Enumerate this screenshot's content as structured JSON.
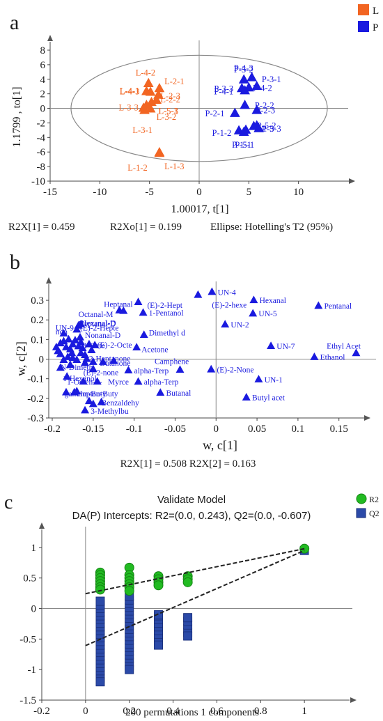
{
  "chart_data": [
    {
      "panel": "a",
      "type": "scatter",
      "xlabel": "1.00017, t[1]",
      "ylabel": "1.1799 , to[1]",
      "xlim": [
        -15,
        15
      ],
      "ylim": [
        -10,
        8
      ],
      "xticks": [
        -15,
        -10,
        -5,
        0,
        5,
        10
      ],
      "yticks": [
        -10,
        -8,
        -6,
        -4,
        -2,
        0,
        2,
        4,
        6,
        8
      ],
      "stats": [
        "R2X[1] = 0.459",
        "R2Xo[1] = 0.199",
        "Ellipse: Hotelling's T2 (95%)"
      ],
      "ellipse": {
        "rx": 12.9,
        "ry": 7.3
      },
      "series": [
        {
          "name": "L",
          "color": "#f26522",
          "points": [
            {
              "label": "L-4-2",
              "x": -5.1,
              "y": 3.4,
              "lx": -6.4,
              "ly": 4.9
            },
            {
              "label": "L-2-1",
              "x": -4.0,
              "y": 2.7,
              "lx": -3.5,
              "ly": 3.7
            },
            {
              "label": "L-4-3",
              "x": -5.3,
              "y": 2.3,
              "lx": -8.0,
              "ly": 2.3
            },
            {
              "label": "L-4-1",
              "x": -4.9,
              "y": 2.2,
              "lx": -8.0,
              "ly": 2.4
            },
            {
              "label": "L-2-3",
              "x": -4.1,
              "y": 1.8,
              "lx": -3.9,
              "ly": 1.7
            },
            {
              "label": "L-2-2",
              "x": -4.3,
              "y": 1.1,
              "lx": -3.9,
              "ly": 1.2
            },
            {
              "label": "L-3-3",
              "x": -4.8,
              "y": 0.8,
              "lx": -8.1,
              "ly": 0.1
            },
            {
              "label": "L-5-1",
              "x": -5.3,
              "y": 0.4,
              "lx": -4.1,
              "ly": -0.4
            },
            {
              "label": "L-5-3",
              "x": -4.9,
              "y": -0.1,
              "lx": -4.1,
              "ly": -0.4
            },
            {
              "label": "L-3-2",
              "x": -5.5,
              "y": -0.3,
              "lx": -4.3,
              "ly": -1.2
            },
            {
              "label": "L-3-1",
              "x": -5.6,
              "y": 0.0,
              "lx": -6.7,
              "ly": -3.0
            },
            {
              "label": "L-1-2",
              "x": -4.0,
              "y": -6.1,
              "lx": -7.2,
              "ly": -8.2
            },
            {
              "label": "L-1-3",
              "x": -4.0,
              "y": -6.2,
              "lx": -3.5,
              "ly": -8.0
            }
          ]
        },
        {
          "name": "P",
          "color": "#1a1adf",
          "points": [
            {
              "label": "P-4-3",
              "x": 5.3,
              "y": 4.2,
              "lx": 3.5,
              "ly": 5.5
            },
            {
              "label": "P-3-2",
              "x": 4.5,
              "y": 3.9,
              "lx": 3.5,
              "ly": 5.3
            },
            {
              "label": "P-3-1",
              "x": 5.8,
              "y": 3.0,
              "lx": 6.3,
              "ly": 4.0
            },
            {
              "label": "P-3-3",
              "x": 4.3,
              "y": 2.7,
              "lx": 1.5,
              "ly": 2.7
            },
            {
              "label": "P-4-1",
              "x": 4.6,
              "y": 2.4,
              "lx": 1.5,
              "ly": 2.3
            },
            {
              "label": "P-4-2",
              "x": 5.0,
              "y": 2.8,
              "lx": 5.4,
              "ly": 2.8
            },
            {
              "label": "P-2-2",
              "x": 4.6,
              "y": 0.4,
              "lx": 5.6,
              "ly": 0.4
            },
            {
              "label": "P-2-3",
              "x": 5.8,
              "y": -0.3,
              "lx": 5.7,
              "ly": -0.3
            },
            {
              "label": "P-2-1",
              "x": 3.6,
              "y": -0.7,
              "lx": 0.6,
              "ly": -0.7
            },
            {
              "label": "P-5-2",
              "x": 5.8,
              "y": -2.4,
              "lx": 5.8,
              "ly": -2.4
            },
            {
              "label": "P-5-3",
              "x": 6.0,
              "y": -2.8,
              "lx": 6.3,
              "ly": -2.8
            },
            {
              "label": "P-1-3",
              "x": 5.5,
              "y": -2.5,
              "lx": 5.6,
              "ly": -2.8
            },
            {
              "label": "P-1-2",
              "x": 4.0,
              "y": -3.1,
              "lx": 1.3,
              "ly": -3.4
            },
            {
              "label": "P-1-1",
              "x": 4.5,
              "y": -3.3,
              "lx": 3.3,
              "ly": -5.0
            },
            {
              "label": "P-5-1",
              "x": 4.7,
              "y": -3.0,
              "lx": 3.6,
              "ly": -5.0
            }
          ]
        }
      ],
      "legend": [
        {
          "name": "L",
          "color": "#f26522"
        },
        {
          "name": "P",
          "color": "#1a1adf"
        }
      ]
    },
    {
      "panel": "b",
      "type": "scatter",
      "xlabel": "w, c[1]",
      "ylabel": "w, c[2]",
      "xlim": [
        -0.2,
        0.18
      ],
      "ylim": [
        -0.3,
        0.35
      ],
      "xticks": [
        -0.2,
        -0.15,
        -0.1,
        -0.05,
        0,
        0.05,
        0.1,
        0.15
      ],
      "yticks": [
        -0.3,
        -0.2,
        -0.1,
        0,
        0.1,
        0.2,
        0.3
      ],
      "stats": [
        "R2X[1] = 0.508 R2X[2] = 0.163"
      ],
      "color": "#1a1adf",
      "points": [
        {
          "label": "UN-4",
          "x": -0.005,
          "y": 0.342
        },
        {
          "label": "Hexanal",
          "x": 0.046,
          "y": 0.3
        },
        {
          "label": "(E)-2-hexe",
          "x": -0.022,
          "y": 0.327,
          "lx": -0.005,
          "ly": 0.278
        },
        {
          "label": "Pentanal",
          "x": 0.125,
          "y": 0.271
        },
        {
          "label": "UN-5",
          "x": 0.045,
          "y": 0.232
        },
        {
          "label": "UN-2",
          "x": 0.011,
          "y": 0.176
        },
        {
          "label": "Heptanal",
          "x": -0.095,
          "y": 0.29,
          "lx": -0.137,
          "ly": 0.281
        },
        {
          "label": "(E)-2-Hept",
          "x": -0.113,
          "y": 0.245,
          "lx": -0.084,
          "ly": 0.276
        },
        {
          "label": "1-Pentanol",
          "x": -0.089,
          "y": 0.236
        },
        {
          "label": "Octanal-M",
          "x": -0.118,
          "y": 0.248,
          "lx": -0.168,
          "ly": 0.23
        },
        {
          "label": "Dimethyl d",
          "x": -0.088,
          "y": 0.123,
          "lx": -0.082,
          "ly": 0.135
        },
        {
          "label": "Acetone",
          "x": -0.097,
          "y": 0.059,
          "lx": -0.091,
          "ly": 0.049
        },
        {
          "label": "UN-7",
          "x": 0.067,
          "y": 0.066
        },
        {
          "label": "Ethyl Acet",
          "x": 0.171,
          "y": 0.03,
          "lx": 0.135,
          "ly": 0.068
        },
        {
          "label": "Ethanol",
          "x": 0.12,
          "y": 0.01
        },
        {
          "label": "Camphene",
          "x": -0.044,
          "y": -0.055,
          "lx": -0.075,
          "ly": -0.01
        },
        {
          "label": "(E)-2-None",
          "x": -0.006,
          "y": -0.053
        },
        {
          "label": "UN-1",
          "x": 0.052,
          "y": -0.104
        },
        {
          "label": "Butyl acet",
          "x": 0.037,
          "y": -0.196
        },
        {
          "label": "alpha-Terp",
          "x": -0.107,
          "y": -0.058
        },
        {
          "label": "alpha-Terp",
          "x": -0.095,
          "y": -0.116
        },
        {
          "label": "Butanal",
          "x": -0.068,
          "y": -0.172
        },
        {
          "label": "Hexanal-D",
          "x": -0.165,
          "y": 0.177,
          "lx": -0.165,
          "ly": 0.185
        },
        {
          "label": "Nonanal-D",
          "x": -0.166,
          "y": 0.11,
          "lx": -0.16,
          "ly": 0.122
        },
        {
          "label": "(E)-2-Hepte",
          "x": -0.17,
          "y": 0.15,
          "lx": -0.166,
          "ly": 0.16
        },
        {
          "label": "UN-9",
          "x": -0.186,
          "y": 0.13,
          "lx": -0.196,
          "ly": 0.16
        },
        {
          "label": "Heptanal-D",
          "x": -0.168,
          "y": 0.17,
          "lx": -0.168,
          "ly": 0.182
        },
        {
          "label": "non",
          "x": -0.19,
          "y": 0.08,
          "lx": -0.196,
          "ly": 0.14
        },
        {
          "label": "(E)-2-Octe",
          "x": -0.155,
          "y": 0.075,
          "lx": -0.145,
          "ly": 0.073
        },
        {
          "label": "1-Octe",
          "x": -0.175,
          "y": 0.075,
          "lx": -0.162,
          "ly": 0.07
        },
        {
          "label": "2-Heptanone",
          "x": -0.17,
          "y": -0.005,
          "lx": -0.155,
          "ly": 0.003
        },
        {
          "label": "Butanone",
          "x": -0.15,
          "y": -0.015,
          "lx": -0.142,
          "ly": -0.02
        },
        {
          "label": "N-Dimeth",
          "x": -0.178,
          "y": -0.03,
          "lx": -0.19,
          "ly": -0.04
        },
        {
          "label": "(E)-2-none",
          "x": -0.15,
          "y": -0.052,
          "lx": -0.162,
          "ly": -0.067
        },
        {
          "label": "1-Hexanol",
          "x": -0.182,
          "y": -0.09,
          "lx": -0.187,
          "ly": -0.098
        },
        {
          "label": "1-Octen-3-",
          "x": -0.162,
          "y": -0.115,
          "lx": -0.182,
          "ly": -0.115
        },
        {
          "label": "Myrce",
          "x": -0.145,
          "y": -0.115,
          "lx": -0.132,
          "ly": -0.115
        },
        {
          "label": "gamma-Buty",
          "x": -0.183,
          "y": -0.17,
          "lx": -0.185,
          "ly": -0.175
        },
        {
          "label": "Heptan-Buty",
          "x": -0.17,
          "y": -0.165,
          "lx": -0.17,
          "ly": -0.175
        },
        {
          "label": "Benzaldehy",
          "x": -0.14,
          "y": -0.22,
          "lx": -0.14,
          "ly": -0.222
        },
        {
          "label": "3-Methylbu",
          "x": -0.16,
          "y": -0.262,
          "lx": -0.153,
          "ly": -0.265
        }
      ],
      "extra_points": [
        {
          "x": -0.195,
          "y": 0.06
        },
        {
          "x": -0.193,
          "y": 0.04
        },
        {
          "x": -0.19,
          "y": 0.025
        },
        {
          "x": -0.186,
          "y": 0.09
        },
        {
          "x": -0.183,
          "y": 0.06
        },
        {
          "x": -0.18,
          "y": 0.1
        },
        {
          "x": -0.178,
          "y": 0.05
        },
        {
          "x": -0.176,
          "y": 0.03
        },
        {
          "x": -0.172,
          "y": 0.095
        },
        {
          "x": -0.168,
          "y": 0.065
        },
        {
          "x": -0.165,
          "y": 0.085
        },
        {
          "x": -0.163,
          "y": 0.055
        },
        {
          "x": -0.16,
          "y": 0.02
        },
        {
          "x": -0.158,
          "y": 0.0
        },
        {
          "x": -0.186,
          "y": -0.005
        },
        {
          "x": -0.181,
          "y": 0.01
        },
        {
          "x": -0.175,
          "y": 0.005
        },
        {
          "x": -0.165,
          "y": 0.03
        },
        {
          "x": -0.152,
          "y": 0.045
        },
        {
          "x": -0.148,
          "y": 0.07
        },
        {
          "x": -0.138,
          "y": -0.015
        },
        {
          "x": -0.125,
          "y": -0.01
        },
        {
          "x": -0.16,
          "y": -0.02
        },
        {
          "x": -0.19,
          "y": -0.045
        },
        {
          "x": -0.173,
          "y": -0.17
        },
        {
          "x": -0.155,
          "y": -0.215
        },
        {
          "x": -0.15,
          "y": -0.23
        }
      ]
    },
    {
      "panel": "c",
      "type": "scatter",
      "title": "Validate Model",
      "subtitle": "DA(P) Intercepts: R2=(0.0, 0.243), Q2=(0.0, -0.607)",
      "xlabel": "200 permutations 1 components",
      "xlim": [
        -0.2,
        1.2
      ],
      "ylim": [
        -1.5,
        1.25
      ],
      "xticks": [
        -0.2,
        0,
        0.2,
        0.4,
        0.6,
        0.8,
        1
      ],
      "yticks": [
        -1.5,
        -1,
        -0.5,
        0,
        0.5,
        1
      ],
      "legend": [
        {
          "name": "R2",
          "color": "#22bb22",
          "marker": "circle"
        },
        {
          "name": "Q2",
          "color": "#2b4aa8",
          "marker": "square"
        }
      ],
      "series": [
        {
          "name": "R2",
          "color": "#22bb22",
          "points": [
            {
              "x": 0.067,
              "y": 0.59
            },
            {
              "x": 0.067,
              "y": 0.55
            },
            {
              "x": 0.067,
              "y": 0.5
            },
            {
              "x": 0.067,
              "y": 0.45
            },
            {
              "x": 0.067,
              "y": 0.4
            },
            {
              "x": 0.067,
              "y": 0.35
            },
            {
              "x": 0.067,
              "y": 0.31
            },
            {
              "x": 0.2,
              "y": 0.67
            },
            {
              "x": 0.2,
              "y": 0.55
            },
            {
              "x": 0.2,
              "y": 0.5
            },
            {
              "x": 0.2,
              "y": 0.45
            },
            {
              "x": 0.2,
              "y": 0.4
            },
            {
              "x": 0.2,
              "y": 0.35
            },
            {
              "x": 0.2,
              "y": 0.29
            },
            {
              "x": 0.333,
              "y": 0.53
            },
            {
              "x": 0.333,
              "y": 0.48
            },
            {
              "x": 0.333,
              "y": 0.43
            },
            {
              "x": 0.333,
              "y": 0.38
            },
            {
              "x": 0.467,
              "y": 0.53
            },
            {
              "x": 0.467,
              "y": 0.48
            },
            {
              "x": 0.467,
              "y": 0.43
            },
            {
              "x": 1.0,
              "y": 0.98
            }
          ]
        },
        {
          "name": "Q2",
          "color": "#2b4aa8",
          "points": [
            {
              "x": 0.067,
              "y": 0.12
            },
            {
              "x": 0.067,
              "y": -1.2
            },
            {
              "x": 0.2,
              "y": 0.2
            },
            {
              "x": 0.2,
              "y": -1.0
            },
            {
              "x": 0.333,
              "y": -0.1
            },
            {
              "x": 0.333,
              "y": -0.6
            },
            {
              "x": 0.467,
              "y": -0.15
            },
            {
              "x": 0.467,
              "y": -0.45
            },
            {
              "x": 1.0,
              "y": 0.95
            }
          ],
          "columns": [
            {
              "x": 0.067,
              "from": -1.2,
              "to": 0.12
            },
            {
              "x": 0.2,
              "from": -1.0,
              "to": 0.2
            },
            {
              "x": 0.333,
              "from": -0.6,
              "to": -0.1
            },
            {
              "x": 0.467,
              "from": -0.45,
              "to": -0.15
            }
          ]
        }
      ],
      "regression_lines": [
        {
          "name": "R2",
          "from": [
            0.0,
            0.243
          ],
          "to": [
            1.0,
            0.98
          ]
        },
        {
          "name": "Q2",
          "from": [
            0.0,
            -0.607
          ],
          "to": [
            1.0,
            0.95
          ]
        }
      ]
    }
  ],
  "panel_labels": [
    "a",
    "b",
    "c"
  ]
}
